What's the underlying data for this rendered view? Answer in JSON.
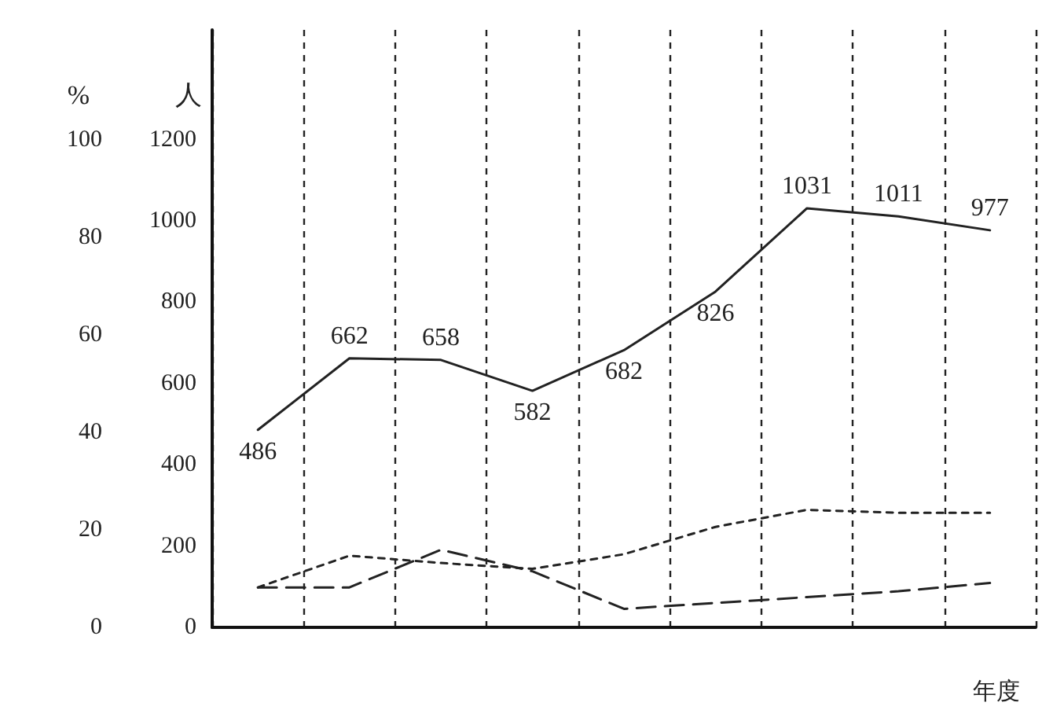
{
  "chart_data": {
    "type": "line",
    "ylabel": "人",
    "y2label": "%",
    "xlabel": "年度",
    "categories": [
      null,
      null,
      null,
      null,
      null,
      null,
      null,
      null,
      null
    ],
    "series": [
      {
        "color": "#222222",
        "line_style": "solid",
        "values": [
          486,
          662,
          658,
          582,
          682,
          826,
          1031,
          1011,
          977
        ],
        "value_labels": [
          "486",
          "662",
          "658",
          "582",
          "682",
          "826",
          "1031",
          "1011",
          "977"
        ]
      },
      {
        "color": "#222222",
        "axis": "y2",
        "line_style": "dotted",
        "values": [
          8.2,
          14.7,
          13.2,
          12,
          15,
          20.6,
          24.1,
          23.5,
          23.5
        ]
      },
      {
        "color": "#222222",
        "axis": "y2",
        "line_style": "dashed",
        "values": [
          8.2,
          8.2,
          15.9,
          11.5,
          3.8,
          5,
          6.2,
          7.4,
          9.1
        ]
      }
    ],
    "ylim": [
      0,
      1470
    ],
    "yticks": [
      0,
      200,
      400,
      600,
      800,
      1000,
      1200
    ],
    "y2lim": [
      0,
      122.5
    ],
    "y2ticks": [
      0,
      20,
      40,
      60,
      80,
      100
    ],
    "grid": "x",
    "marker": "none"
  }
}
